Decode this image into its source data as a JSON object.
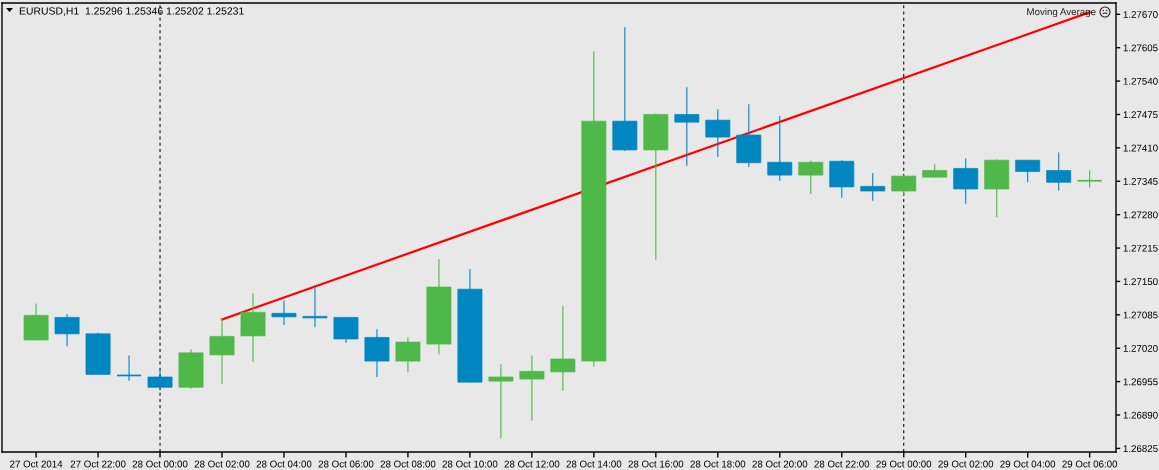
{
  "chart_data": {
    "type": "candlestick",
    "title": "EURUSD,H1  1.25296 1.25346 1.25202 1.25231",
    "categories": [
      "27 Oct 2014",
      null,
      "27 Oct 22:00",
      null,
      "28 Oct 00:00",
      null,
      "28 Oct 02:00",
      null,
      "28 Oct 04:00",
      null,
      "28 Oct 06:00",
      null,
      "28 Oct 08:00",
      null,
      "28 Oct 10:00",
      null,
      "28 Oct 12:00",
      null,
      "28 Oct 14:00",
      null,
      "28 Oct 16:00",
      null,
      "28 Oct 18:00",
      null,
      "28 Oct 20:00",
      null,
      "28 Oct 22:00",
      null,
      "29 Oct 00:00",
      null,
      "29 Oct 02:00",
      null,
      "29 Oct 04:00",
      null,
      "29 Oct 06:00"
    ],
    "ohlc": [
      [
        1.27036,
        1.27107,
        1.27036,
        1.27084
      ],
      [
        1.2708,
        1.27086,
        1.27024,
        1.27048
      ],
      [
        1.27048,
        1.2705,
        1.26969,
        1.26969
      ],
      [
        1.26967,
        1.27006,
        1.26956,
        1.26967
      ],
      [
        1.26964,
        1.26979,
        1.26938,
        1.26944
      ],
      [
        1.26944,
        1.27018,
        1.26941,
        1.27011
      ],
      [
        1.27007,
        1.27078,
        1.2695,
        1.27043
      ],
      [
        1.27044,
        1.27127,
        1.26993,
        1.2709
      ],
      [
        1.27088,
        1.27113,
        1.27065,
        1.27081
      ],
      [
        1.27082,
        1.27143,
        1.27061,
        1.27079
      ],
      [
        1.2708,
        1.2708,
        1.2703,
        1.27038
      ],
      [
        1.27041,
        1.27057,
        1.26964,
        1.26995
      ],
      [
        1.26995,
        1.27041,
        1.26973,
        1.27032
      ],
      [
        1.27028,
        1.27193,
        1.27008,
        1.27139
      ],
      [
        1.27135,
        1.27174,
        1.26954,
        1.26954
      ],
      [
        1.26956,
        1.26989,
        1.26845,
        1.26964
      ],
      [
        1.2696,
        1.27006,
        1.26879,
        1.26975
      ],
      [
        1.26974,
        1.27102,
        1.26937,
        1.26999
      ],
      [
        1.26995,
        1.27598,
        1.26984,
        1.27462
      ],
      [
        1.27462,
        1.27645,
        1.27404,
        1.27406
      ],
      [
        1.27406,
        1.27477,
        1.27192,
        1.27475
      ],
      [
        1.27475,
        1.27528,
        1.27375,
        1.2746
      ],
      [
        1.27464,
        1.27485,
        1.27392,
        1.27431
      ],
      [
        1.27435,
        1.27495,
        1.27373,
        1.27381
      ],
      [
        1.27382,
        1.27472,
        1.27346,
        1.27357
      ],
      [
        1.27357,
        1.27385,
        1.2732,
        1.27382
      ],
      [
        1.27384,
        1.27386,
        1.27313,
        1.27334
      ],
      [
        1.27335,
        1.27361,
        1.27307,
        1.27326
      ],
      [
        1.27326,
        1.27357,
        1.27318,
        1.27355
      ],
      [
        1.27353,
        1.27378,
        1.27353,
        1.27366
      ],
      [
        1.2737,
        1.2739,
        1.27301,
        1.2733
      ],
      [
        1.2733,
        1.27388,
        1.27275,
        1.27386
      ],
      [
        1.27386,
        1.27386,
        1.27343,
        1.27364
      ],
      [
        1.27366,
        1.27401,
        1.27327,
        1.27343
      ],
      [
        1.27346,
        1.27366,
        1.27333,
        1.27346
      ]
    ],
    "colors": [
      "#4eb848",
      "#0086c0",
      "#0086c0",
      "#0086c0",
      "#0086c0",
      "#4eb848",
      "#4eb848",
      "#4eb848",
      "#0086c0",
      "#0086c0",
      "#0086c0",
      "#0086c0",
      "#4eb848",
      "#4eb848",
      "#0086c0",
      "#4eb848",
      "#4eb848",
      "#4eb848",
      "#4eb848",
      "#0086c0",
      "#4eb848",
      "#0086c0",
      "#0086c0",
      "#0086c0",
      "#0086c0",
      "#4eb848",
      "#0086c0",
      "#0086c0",
      "#4eb848",
      "#4eb848",
      "#0086c0",
      "#4eb848",
      "#0086c0",
      "#0086c0",
      "#4eb848"
    ],
    "series": [
      {
        "type": "line",
        "color": "#ff0000",
        "x": [
          "28 Oct 02:00",
          "29 Oct 06:00"
        ],
        "values": [
          1.27076,
          1.27674
        ]
      }
    ],
    "ylim": [
      1.26818,
      1.27692
    ],
    "yticks": [
      {
        "value": 1.26825,
        "label": "1.26825"
      },
      {
        "value": 1.2689,
        "label": "1.26890"
      },
      {
        "value": 1.26955,
        "label": "1.26955"
      },
      {
        "value": 1.2702,
        "label": "1.27020"
      },
      {
        "value": 1.27085,
        "label": "1.27085"
      },
      {
        "value": 1.2715,
        "label": "1.27150"
      },
      {
        "value": 1.27215,
        "label": "1.27215"
      },
      {
        "value": 1.2728,
        "label": "1.27280"
      },
      {
        "value": 1.27345,
        "label": "1.27345"
      },
      {
        "value": 1.2741,
        "label": "1.27410"
      },
      {
        "value": 1.27475,
        "label": "1.27475"
      },
      {
        "value": 1.2754,
        "label": "1.27540"
      },
      {
        "value": 1.27605,
        "label": "1.27605"
      },
      {
        "value": 1.2767,
        "label": "1.27670"
      }
    ],
    "ref_lines": [
      {
        "axis": "x",
        "value": "28 Oct 00:00",
        "color": "#000000",
        "line_style": "dashed"
      },
      {
        "axis": "x",
        "value": "29 Oct 00:00",
        "color": "#000000",
        "line_style": "dashed"
      }
    ],
    "annotations": [
      "Moving Average"
    ]
  }
}
